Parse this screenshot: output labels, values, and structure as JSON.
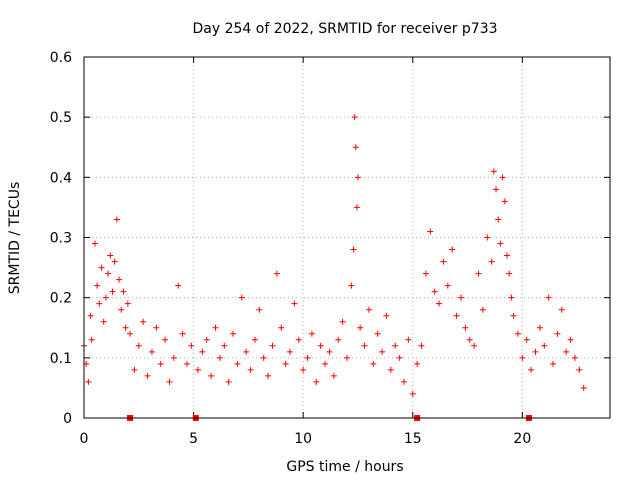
{
  "chart_data": {
    "type": "scatter",
    "title": "Day 254 of 2022, SRMTID for receiver p733",
    "xlabel": "GPS time / hours",
    "ylabel": "SRMTID / TECUs",
    "xlim": [
      0,
      24
    ],
    "ylim": [
      0,
      0.6
    ],
    "xticks": [
      0,
      5,
      10,
      15,
      20
    ],
    "yticks": [
      0,
      0.1,
      0.2,
      0.3,
      0.4,
      0.5,
      0.6
    ],
    "xtick_labels": [
      "0",
      "5",
      "10",
      "15",
      "20"
    ],
    "ytick_labels": [
      "0",
      "0.1",
      "0.2",
      "0.3",
      "0.4",
      "0.5",
      "0.6"
    ],
    "grid": true,
    "marker": "+",
    "color": "#ff0000",
    "series": [
      {
        "name": "SRMTID",
        "x": [
          0.0,
          0.1,
          0.2,
          0.3,
          0.35,
          0.5,
          0.6,
          0.7,
          0.8,
          0.9,
          1.0,
          1.1,
          1.2,
          1.3,
          1.4,
          1.5,
          1.6,
          1.7,
          1.8,
          1.9,
          2.0,
          2.1,
          2.3,
          2.5,
          2.7,
          2.9,
          3.1,
          3.3,
          3.5,
          3.7,
          3.9,
          4.1,
          4.3,
          4.5,
          4.7,
          4.9,
          5.2,
          5.4,
          5.6,
          5.8,
          6.0,
          6.2,
          6.4,
          6.6,
          6.8,
          7.0,
          7.2,
          7.4,
          7.6,
          7.8,
          8.0,
          8.2,
          8.4,
          8.6,
          8.8,
          9.0,
          9.2,
          9.4,
          9.6,
          9.8,
          10.0,
          10.2,
          10.4,
          10.6,
          10.8,
          11.0,
          11.2,
          11.4,
          11.6,
          11.8,
          12.0,
          12.2,
          12.3,
          12.35,
          12.4,
          12.45,
          12.5,
          12.6,
          12.8,
          13.0,
          13.2,
          13.4,
          13.6,
          13.8,
          14.0,
          14.2,
          14.4,
          14.6,
          14.8,
          15.0,
          15.2,
          15.4,
          15.6,
          15.8,
          16.0,
          16.2,
          16.4,
          16.6,
          16.8,
          17.0,
          17.2,
          17.4,
          17.6,
          17.8,
          18.0,
          18.2,
          18.4,
          18.6,
          18.7,
          18.8,
          18.9,
          19.0,
          19.1,
          19.2,
          19.3,
          19.4,
          19.5,
          19.6,
          19.8,
          20.0,
          20.2,
          20.4,
          20.6,
          20.8,
          21.0,
          21.2,
          21.4,
          21.6,
          21.8,
          22.0,
          22.2,
          22.4,
          22.6,
          22.8
        ],
        "y": [
          0.12,
          0.09,
          0.06,
          0.17,
          0.13,
          0.29,
          0.22,
          0.19,
          0.25,
          0.16,
          0.2,
          0.24,
          0.27,
          0.21,
          0.26,
          0.33,
          0.23,
          0.18,
          0.21,
          0.15,
          0.19,
          0.14,
          0.08,
          0.12,
          0.16,
          0.07,
          0.11,
          0.15,
          0.09,
          0.13,
          0.06,
          0.1,
          0.22,
          0.14,
          0.09,
          0.12,
          0.08,
          0.11,
          0.13,
          0.07,
          0.15,
          0.1,
          0.12,
          0.06,
          0.14,
          0.09,
          0.2,
          0.11,
          0.08,
          0.13,
          0.18,
          0.1,
          0.07,
          0.12,
          0.24,
          0.15,
          0.09,
          0.11,
          0.19,
          0.13,
          0.08,
          0.1,
          0.14,
          0.06,
          0.12,
          0.09,
          0.11,
          0.07,
          0.13,
          0.16,
          0.1,
          0.22,
          0.28,
          0.5,
          0.45,
          0.35,
          0.4,
          0.15,
          0.12,
          0.18,
          0.09,
          0.14,
          0.11,
          0.17,
          0.08,
          0.12,
          0.1,
          0.06,
          0.13,
          0.04,
          0.09,
          0.12,
          0.24,
          0.31,
          0.21,
          0.19,
          0.26,
          0.22,
          0.28,
          0.17,
          0.2,
          0.15,
          0.13,
          0.12,
          0.24,
          0.18,
          0.3,
          0.26,
          0.41,
          0.38,
          0.33,
          0.29,
          0.4,
          0.36,
          0.27,
          0.24,
          0.2,
          0.17,
          0.14,
          0.1,
          0.13,
          0.08,
          0.11,
          0.15,
          0.12,
          0.2,
          0.09,
          0.14,
          0.18,
          0.11,
          0.13,
          0.1,
          0.08,
          0.05
        ]
      }
    ],
    "gap_markers_x": [
      2.1,
      5.1,
      15.2,
      20.3
    ]
  }
}
